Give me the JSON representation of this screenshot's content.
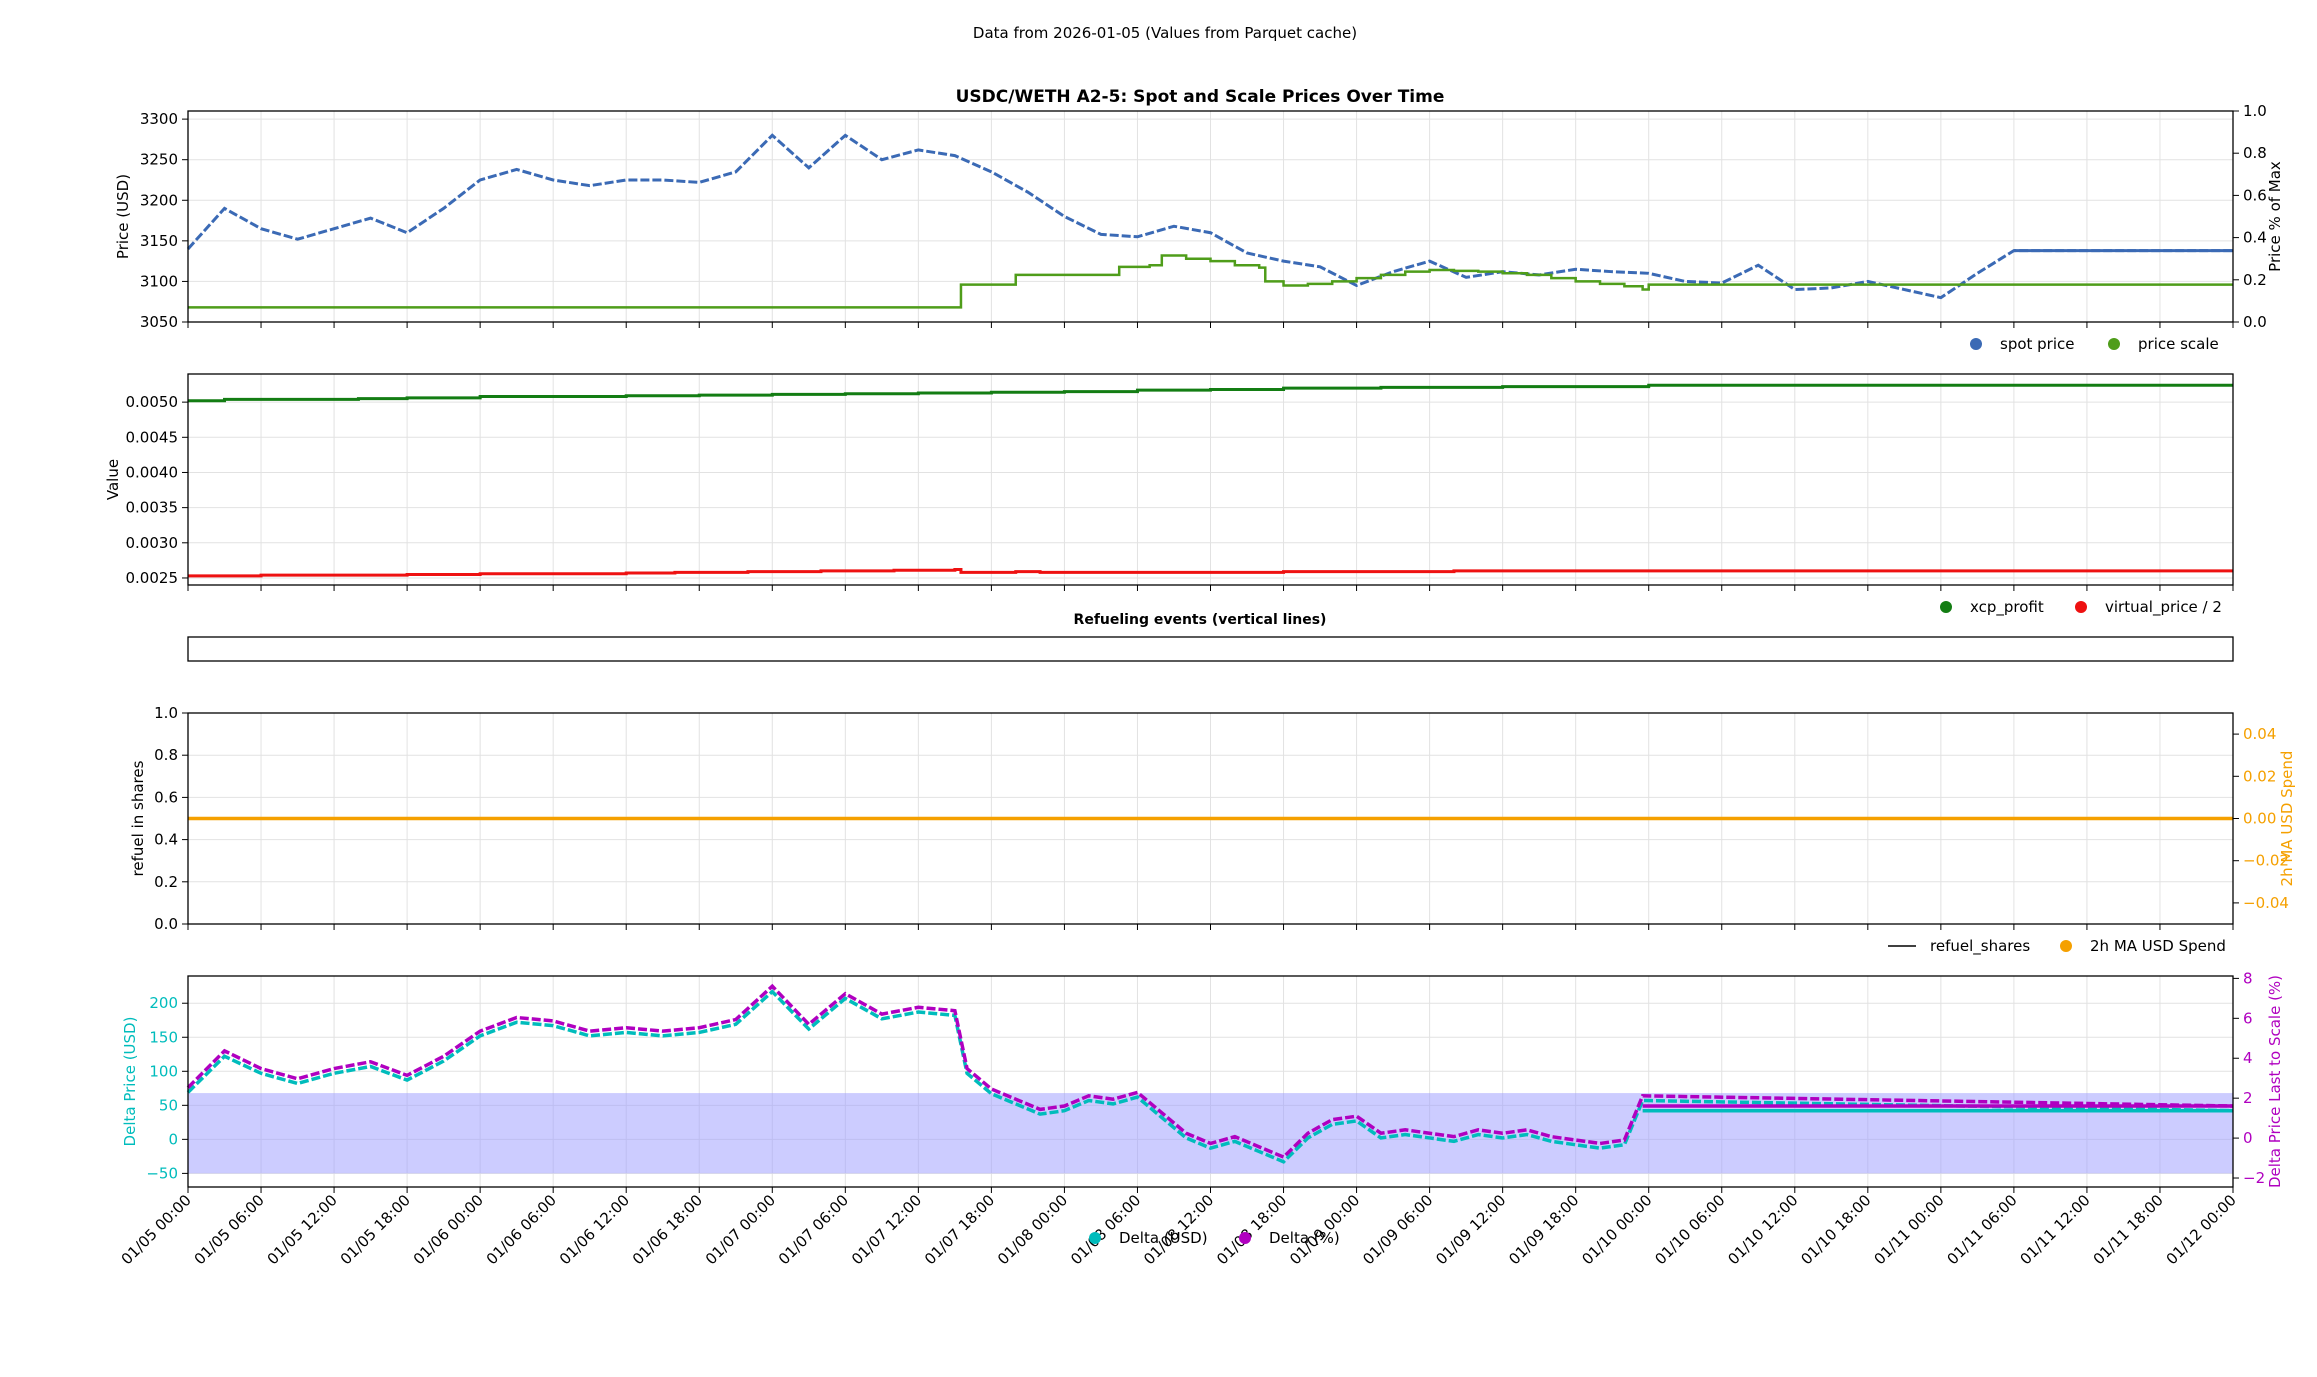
{
  "suptitle": "Data from 2026-01-05 (Values from Parquet cache)",
  "colors": {
    "spot": "#3b6ab5",
    "scale": "#4f9d1a",
    "xcp": "#137d13",
    "virtual": "#ee1111",
    "refuel": "#000000",
    "ma": "#f5a000",
    "delta_usd": "#00bcbc",
    "delta_pct": "#b000c0",
    "band": "#9999ff",
    "grid": "#e2e2e2"
  },
  "x_ticks": [
    "01/05 00:00",
    "01/05 06:00",
    "01/05 12:00",
    "01/05 18:00",
    "01/06 00:00",
    "01/06 06:00",
    "01/06 12:00",
    "01/06 18:00",
    "01/07 00:00",
    "01/07 06:00",
    "01/07 12:00",
    "01/07 18:00",
    "01/08 00:00",
    "01/08 06:00",
    "01/08 12:00",
    "01/08 18:00",
    "01/09 00:00",
    "01/09 06:00",
    "01/09 12:00",
    "01/09 18:00",
    "01/10 00:00",
    "01/10 06:00",
    "01/10 12:00",
    "01/10 18:00",
    "01/11 00:00",
    "01/11 06:00",
    "01/11 12:00",
    "01/11 18:00",
    "01/12 00:00"
  ],
  "chart_data": [
    {
      "type": "scatter",
      "title": "USDC/WETH A2-5: Spot and Scale Prices Over Time",
      "ylabel": "Price (USD)",
      "ylabel_right": "Price % of Max",
      "ylim": [
        3050,
        3310
      ],
      "yticks": [
        3050,
        3100,
        3150,
        3200,
        3250,
        3300
      ],
      "ylim_right": [
        0,
        1
      ],
      "yticks_right": [
        "0.0",
        "0.2",
        "0.4",
        "0.6",
        "0.8",
        "1.0"
      ],
      "xlim_hours": [
        0,
        168
      ],
      "legend": "bottom-right",
      "series": [
        {
          "name": "spot price",
          "x_hours": [
            0,
            3,
            6,
            9,
            12,
            15,
            18,
            21,
            24,
            27,
            30,
            33,
            36,
            39,
            42,
            45,
            48,
            51,
            54,
            57,
            60,
            63,
            66,
            69,
            72,
            75,
            78,
            81,
            84,
            87,
            90,
            93,
            96,
            99,
            102,
            105,
            108,
            111,
            114,
            117,
            120,
            123,
            126,
            129,
            132,
            135,
            138,
            141,
            144,
            147,
            150,
            168
          ],
          "values": [
            3140,
            3190,
            3165,
            3152,
            3165,
            3178,
            3160,
            3190,
            3225,
            3238,
            3225,
            3218,
            3225,
            3225,
            3222,
            3235,
            3280,
            3240,
            3280,
            3250,
            3262,
            3255,
            3235,
            3210,
            3180,
            3158,
            3155,
            3168,
            3160,
            3135,
            3125,
            3118,
            3095,
            3112,
            3125,
            3105,
            3112,
            3108,
            3115,
            3112,
            3110,
            3100,
            3098,
            3120,
            3090,
            3092,
            3100,
            3090,
            3080,
            3110,
            3138,
            3138
          ]
        },
        {
          "name": "price scale",
          "x_hours": [
            0,
            63.5,
            63.5,
            68,
            68,
            76.5,
            76.5,
            79,
            80,
            82,
            84,
            86,
            88,
            88.5,
            90,
            92,
            94,
            96,
            98,
            100,
            102,
            104,
            106,
            108,
            110,
            112,
            114,
            116,
            118,
            119.5,
            120,
            168
          ],
          "values": [
            3068,
            3068,
            3096,
            3096,
            3108,
            3108,
            3118,
            3120,
            3132,
            3128,
            3125,
            3120,
            3117,
            3100,
            3095,
            3097,
            3100,
            3104,
            3108,
            3112,
            3114,
            3113,
            3112,
            3110,
            3108,
            3104,
            3100,
            3097,
            3094,
            3090,
            3096,
            3096
          ]
        }
      ]
    },
    {
      "type": "line",
      "ylabel": "Value",
      "ylim": [
        0.0024,
        0.0054
      ],
      "yticks": [
        "0.0025",
        "0.0030",
        "0.0035",
        "0.0040",
        "0.0045",
        "0.0050"
      ],
      "xlim_hours": [
        0,
        168
      ],
      "legend": "bottom-right",
      "series": [
        {
          "name": "xcp_profit",
          "x_hours": [
            0,
            3,
            14,
            18,
            24,
            36,
            42,
            48,
            54,
            60,
            66,
            72,
            78,
            84,
            90,
            98,
            108,
            120,
            168
          ],
          "values": [
            0.00502,
            0.00504,
            0.00505,
            0.00506,
            0.00508,
            0.00509,
            0.0051,
            0.00511,
            0.00512,
            0.00513,
            0.00514,
            0.00515,
            0.00517,
            0.00518,
            0.0052,
            0.00521,
            0.00522,
            0.00524,
            0.00524
          ]
        },
        {
          "name": "virtual_price / 2",
          "x_hours": [
            0,
            2,
            6,
            12,
            18,
            24,
            36,
            40,
            46,
            52,
            58,
            63,
            63.5,
            68,
            70,
            88,
            90,
            98,
            104,
            168
          ],
          "values": [
            0.00253,
            0.00253,
            0.00254,
            0.00254,
            0.00255,
            0.00256,
            0.00257,
            0.00258,
            0.00259,
            0.0026,
            0.00261,
            0.00262,
            0.00258,
            0.00259,
            0.00258,
            0.00258,
            0.00259,
            0.00259,
            0.0026,
            0.0026
          ]
        }
      ]
    },
    {
      "type": "line",
      "title": "Refueling events (vertical lines)",
      "xlim_hours": [
        0,
        168
      ]
    },
    {
      "type": "line",
      "ylabel": "refuel in shares",
      "ylabel_right": "2h MA USD Spend",
      "ylim": [
        0,
        1
      ],
      "yticks": [
        "0.0",
        "0.2",
        "0.4",
        "0.6",
        "0.8",
        "1.0"
      ],
      "ylim_right": [
        -0.05,
        0.05
      ],
      "yticks_right": [
        "−0.04",
        "−0.02",
        "0.00",
        "0.02",
        "0.04"
      ],
      "xlim_hours": [
        0,
        168
      ],
      "legend": "bottom-right",
      "series": [
        {
          "name": "refuel_shares",
          "x_hours": [],
          "values": []
        },
        {
          "name": "2h MA USD Spend",
          "x_hours": [
            0,
            168
          ],
          "values": [
            0,
            0
          ]
        }
      ]
    },
    {
      "type": "scatter",
      "ylabel": "Delta Price (USD)",
      "ylabel_right": "Delta Price Last to Scale (%)",
      "ylim": [
        -70,
        240
      ],
      "yticks": [
        "−50",
        "0",
        "50",
        "100",
        "150",
        "200"
      ],
      "ylim_right": [
        -2.45,
        8.12
      ],
      "yticks_right": [
        "−2",
        "0",
        "2",
        "4",
        "6",
        "8"
      ],
      "band": [
        -50,
        68
      ],
      "xlim_hours": [
        0,
        168
      ],
      "legend": "bottom-center",
      "series": [
        {
          "name": "Delta (USD)",
          "x_hours": [
            0,
            3,
            6,
            9,
            12,
            15,
            18,
            21,
            24,
            27,
            30,
            33,
            36,
            39,
            42,
            45,
            48,
            51,
            54,
            57,
            60,
            63,
            64,
            66,
            68,
            70,
            72,
            74,
            76,
            78,
            80,
            82,
            84,
            86,
            88,
            90,
            92,
            94,
            96,
            98,
            100,
            102,
            104,
            106,
            108,
            110,
            112,
            114,
            116,
            118,
            119.5,
            168
          ],
          "values": [
            72,
            125,
            100,
            85,
            100,
            110,
            90,
            118,
            155,
            175,
            170,
            155,
            160,
            155,
            160,
            172,
            220,
            165,
            210,
            180,
            190,
            185,
            100,
            70,
            55,
            40,
            45,
            60,
            55,
            65,
            35,
            5,
            -10,
            0,
            -15,
            -30,
            5,
            25,
            30,
            5,
            10,
            5,
            0,
            10,
            5,
            10,
            0,
            -5,
            -10,
            -5,
            60,
            45
          ]
        },
        {
          "name": "Delta (%)",
          "x_hours": [
            0,
            3,
            6,
            9,
            12,
            15,
            18,
            21,
            24,
            27,
            30,
            33,
            36,
            39,
            42,
            45,
            48,
            51,
            54,
            57,
            60,
            63,
            64,
            66,
            68,
            70,
            72,
            74,
            76,
            78,
            80,
            82,
            84,
            86,
            88,
            90,
            92,
            94,
            96,
            98,
            100,
            102,
            104,
            106,
            108,
            110,
            112,
            114,
            116,
            118,
            119.5,
            168
          ],
          "values": [
            76,
            130,
            104,
            89,
            104,
            114,
            94,
            122,
            159,
            179,
            174,
            159,
            164,
            159,
            164,
            176,
            225,
            169,
            214,
            184,
            194,
            189,
            104,
            74,
            59,
            44,
            49,
            64,
            59,
            69,
            39,
            9,
            -6,
            4,
            -11,
            -26,
            9,
            29,
            34,
            9,
            14,
            9,
            4,
            14,
            9,
            14,
            4,
            -1,
            -6,
            -1,
            64,
            49
          ]
        }
      ]
    }
  ]
}
